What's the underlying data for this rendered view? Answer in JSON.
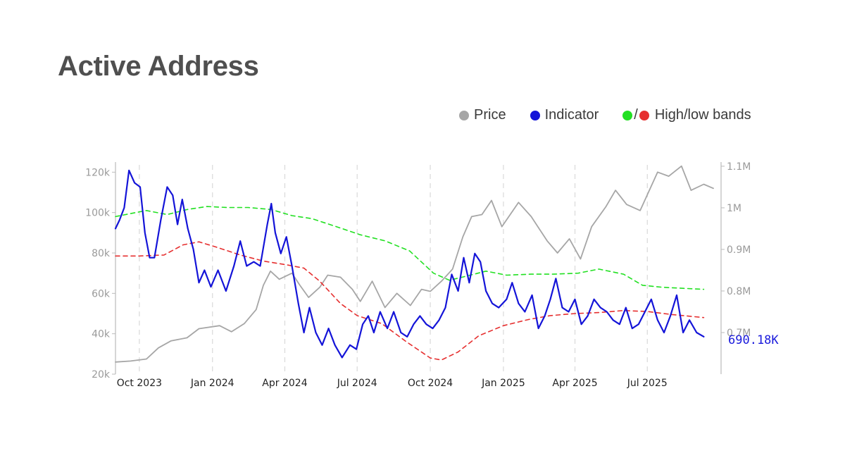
{
  "title": "Active Address",
  "legend": {
    "price": "Price",
    "indicator": "Indicator",
    "slash": "/",
    "bands": "High/low bands"
  },
  "colors": {
    "price": "#a6a6a6",
    "indicator": "#1414d8",
    "high_band": "#22e022",
    "low_band": "#e63030",
    "grid": "#d9d9d9",
    "axis": "#bbbbbb",
    "title": "#4f4f4f"
  },
  "chart_data": {
    "type": "line",
    "title": "Active Address",
    "x_ticks": [
      "Oct 2023",
      "Jan 2024",
      "Apr 2024",
      "Jul 2024",
      "Oct 2024",
      "Jan 2025",
      "Apr 2025",
      "Jul 2025"
    ],
    "x_tick_dates": [
      "2023-10-01",
      "2024-01-01",
      "2024-04-01",
      "2024-07-01",
      "2024-10-01",
      "2025-01-01",
      "2025-04-01",
      "2025-07-01"
    ],
    "x_range": [
      "2023-09-01",
      "2025-09-30"
    ],
    "y_left": {
      "range": [
        20000,
        125000
      ],
      "ticks": [
        20000,
        40000,
        60000,
        80000,
        100000,
        120000
      ],
      "tick_labels": [
        "20k",
        "40k",
        "60k",
        "80k",
        "100k",
        "120k"
      ]
    },
    "y_right": {
      "range": [
        600000,
        1110000
      ],
      "ticks": [
        700000,
        800000,
        900000,
        1000000,
        1100000
      ],
      "tick_labels": [
        "0.7M",
        "0.8M",
        "0.9M",
        "1M",
        "1.1M"
      ]
    },
    "grid": {
      "vertical_dashed": true,
      "horizontal": false
    },
    "last_value_label": "690.18K",
    "series": [
      {
        "name": "Price",
        "axis": "left",
        "style": "solid",
        "color": "#a6a6a6",
        "points": [
          [
            "2023-09-01",
            26000
          ],
          [
            "2023-09-20",
            26500
          ],
          [
            "2023-10-10",
            27500
          ],
          [
            "2023-10-25",
            33000
          ],
          [
            "2023-11-10",
            36500
          ],
          [
            "2023-11-30",
            38000
          ],
          [
            "2023-12-15",
            42500
          ],
          [
            "2024-01-10",
            44000
          ],
          [
            "2024-01-25",
            41000
          ],
          [
            "2024-02-10",
            45000
          ],
          [
            "2024-02-25",
            52000
          ],
          [
            "2024-03-05",
            64000
          ],
          [
            "2024-03-14",
            71000
          ],
          [
            "2024-03-25",
            67000
          ],
          [
            "2024-04-10",
            70000
          ],
          [
            "2024-04-20",
            64000
          ],
          [
            "2024-05-01",
            58000
          ],
          [
            "2024-05-15",
            63000
          ],
          [
            "2024-05-25",
            69000
          ],
          [
            "2024-06-10",
            68000
          ],
          [
            "2024-06-25",
            62000
          ],
          [
            "2024-07-05",
            56000
          ],
          [
            "2024-07-20",
            66000
          ],
          [
            "2024-08-05",
            53000
          ],
          [
            "2024-08-20",
            60000
          ],
          [
            "2024-09-06",
            54000
          ],
          [
            "2024-09-20",
            62000
          ],
          [
            "2024-10-01",
            61000
          ],
          [
            "2024-10-15",
            66000
          ],
          [
            "2024-10-29",
            72000
          ],
          [
            "2024-11-11",
            88000
          ],
          [
            "2024-11-22",
            98000
          ],
          [
            "2024-12-05",
            99000
          ],
          [
            "2024-12-17",
            106000
          ],
          [
            "2024-12-30",
            93000
          ],
          [
            "2025-01-20",
            105000
          ],
          [
            "2025-02-05",
            98000
          ],
          [
            "2025-02-25",
            86000
          ],
          [
            "2025-03-10",
            80000
          ],
          [
            "2025-03-25",
            87000
          ],
          [
            "2025-04-08",
            77000
          ],
          [
            "2025-04-22",
            93000
          ],
          [
            "2025-05-10",
            103000
          ],
          [
            "2025-05-22",
            111000
          ],
          [
            "2025-06-05",
            104000
          ],
          [
            "2025-06-22",
            101000
          ],
          [
            "2025-07-14",
            120000
          ],
          [
            "2025-07-28",
            118000
          ],
          [
            "2025-08-13",
            123000
          ],
          [
            "2025-08-25",
            111000
          ],
          [
            "2025-09-10",
            114000
          ],
          [
            "2025-09-22",
            112000
          ]
        ]
      },
      {
        "name": "Indicator",
        "axis": "right",
        "style": "solid",
        "color": "#1414d8",
        "points": [
          [
            "2023-09-01",
            950000
          ],
          [
            "2023-09-06",
            970000
          ],
          [
            "2023-09-12",
            1000000
          ],
          [
            "2023-09-18",
            1090000
          ],
          [
            "2023-09-25",
            1060000
          ],
          [
            "2023-10-02",
            1050000
          ],
          [
            "2023-10-08",
            940000
          ],
          [
            "2023-10-14",
            880000
          ],
          [
            "2023-10-20",
            880000
          ],
          [
            "2023-10-28",
            970000
          ],
          [
            "2023-11-05",
            1050000
          ],
          [
            "2023-11-12",
            1030000
          ],
          [
            "2023-11-18",
            960000
          ],
          [
            "2023-11-24",
            1020000
          ],
          [
            "2023-12-01",
            950000
          ],
          [
            "2023-12-08",
            900000
          ],
          [
            "2023-12-15",
            820000
          ],
          [
            "2023-12-22",
            850000
          ],
          [
            "2023-12-30",
            810000
          ],
          [
            "2024-01-08",
            850000
          ],
          [
            "2024-01-18",
            800000
          ],
          [
            "2024-01-28",
            860000
          ],
          [
            "2024-02-05",
            920000
          ],
          [
            "2024-02-13",
            860000
          ],
          [
            "2024-02-22",
            870000
          ],
          [
            "2024-03-01",
            860000
          ],
          [
            "2024-03-10",
            960000
          ],
          [
            "2024-03-15",
            1010000
          ],
          [
            "2024-03-20",
            940000
          ],
          [
            "2024-03-27",
            890000
          ],
          [
            "2024-04-03",
            930000
          ],
          [
            "2024-04-10",
            860000
          ],
          [
            "2024-04-18",
            770000
          ],
          [
            "2024-04-25",
            700000
          ],
          [
            "2024-05-02",
            760000
          ],
          [
            "2024-05-10",
            700000
          ],
          [
            "2024-05-18",
            670000
          ],
          [
            "2024-05-26",
            710000
          ],
          [
            "2024-06-03",
            670000
          ],
          [
            "2024-06-12",
            640000
          ],
          [
            "2024-06-22",
            670000
          ],
          [
            "2024-06-30",
            660000
          ],
          [
            "2024-07-08",
            720000
          ],
          [
            "2024-07-15",
            740000
          ],
          [
            "2024-07-22",
            700000
          ],
          [
            "2024-07-30",
            750000
          ],
          [
            "2024-08-08",
            710000
          ],
          [
            "2024-08-16",
            750000
          ],
          [
            "2024-08-25",
            700000
          ],
          [
            "2024-09-02",
            690000
          ],
          [
            "2024-09-10",
            720000
          ],
          [
            "2024-09-18",
            740000
          ],
          [
            "2024-09-26",
            720000
          ],
          [
            "2024-10-04",
            710000
          ],
          [
            "2024-10-12",
            730000
          ],
          [
            "2024-10-20",
            760000
          ],
          [
            "2024-10-28",
            840000
          ],
          [
            "2024-11-05",
            800000
          ],
          [
            "2024-11-12",
            880000
          ],
          [
            "2024-11-19",
            820000
          ],
          [
            "2024-11-26",
            890000
          ],
          [
            "2024-12-03",
            870000
          ],
          [
            "2024-12-10",
            800000
          ],
          [
            "2024-12-18",
            770000
          ],
          [
            "2024-12-26",
            760000
          ],
          [
            "2025-01-05",
            780000
          ],
          [
            "2025-01-12",
            820000
          ],
          [
            "2025-01-20",
            770000
          ],
          [
            "2025-01-28",
            750000
          ],
          [
            "2025-02-06",
            790000
          ],
          [
            "2025-02-14",
            710000
          ],
          [
            "2025-02-22",
            740000
          ],
          [
            "2025-03-01",
            780000
          ],
          [
            "2025-03-08",
            830000
          ],
          [
            "2025-03-16",
            760000
          ],
          [
            "2025-03-24",
            750000
          ],
          [
            "2025-04-01",
            780000
          ],
          [
            "2025-04-09",
            720000
          ],
          [
            "2025-04-17",
            740000
          ],
          [
            "2025-04-25",
            780000
          ],
          [
            "2025-05-03",
            760000
          ],
          [
            "2025-05-11",
            750000
          ],
          [
            "2025-05-19",
            730000
          ],
          [
            "2025-05-27",
            720000
          ],
          [
            "2025-06-04",
            760000
          ],
          [
            "2025-06-12",
            710000
          ],
          [
            "2025-06-20",
            720000
          ],
          [
            "2025-06-28",
            750000
          ],
          [
            "2025-07-06",
            780000
          ],
          [
            "2025-07-14",
            730000
          ],
          [
            "2025-07-22",
            700000
          ],
          [
            "2025-07-30",
            740000
          ],
          [
            "2025-08-07",
            790000
          ],
          [
            "2025-08-15",
            700000
          ],
          [
            "2025-08-23",
            730000
          ],
          [
            "2025-09-01",
            700000
          ],
          [
            "2025-09-10",
            690180
          ]
        ]
      },
      {
        "name": "High band",
        "axis": "left",
        "style": "dashed",
        "color": "#22e022",
        "points": [
          [
            "2023-09-01",
            98000
          ],
          [
            "2023-09-20",
            99500
          ],
          [
            "2023-10-10",
            101000
          ],
          [
            "2023-11-05",
            99000
          ],
          [
            "2023-11-30",
            101500
          ],
          [
            "2023-12-25",
            103000
          ],
          [
            "2024-01-20",
            102500
          ],
          [
            "2024-02-15",
            102500
          ],
          [
            "2024-03-15",
            101500
          ],
          [
            "2024-04-10",
            98500
          ],
          [
            "2024-05-05",
            97000
          ],
          [
            "2024-06-05",
            93000
          ],
          [
            "2024-07-05",
            89000
          ],
          [
            "2024-08-05",
            86000
          ],
          [
            "2024-09-05",
            81000
          ],
          [
            "2024-10-05",
            70000
          ],
          [
            "2024-10-25",
            66500
          ],
          [
            "2024-11-15",
            68500
          ],
          [
            "2024-12-10",
            71000
          ],
          [
            "2025-01-05",
            69000
          ],
          [
            "2025-02-05",
            69500
          ],
          [
            "2025-03-05",
            69500
          ],
          [
            "2025-04-05",
            70000
          ],
          [
            "2025-05-01",
            72000
          ],
          [
            "2025-06-01",
            69500
          ],
          [
            "2025-06-25",
            64000
          ],
          [
            "2025-07-20",
            63000
          ],
          [
            "2025-08-15",
            62500
          ],
          [
            "2025-09-10",
            62000
          ]
        ]
      },
      {
        "name": "Low band",
        "axis": "left",
        "style": "dashed",
        "color": "#e63030",
        "points": [
          [
            "2023-09-01",
            78500
          ],
          [
            "2023-10-01",
            78500
          ],
          [
            "2023-11-01",
            79000
          ],
          [
            "2023-11-25",
            84000
          ],
          [
            "2023-12-15",
            85500
          ],
          [
            "2024-01-05",
            83000
          ],
          [
            "2024-02-05",
            79000
          ],
          [
            "2024-03-05",
            76000
          ],
          [
            "2024-04-05",
            74000
          ],
          [
            "2024-04-25",
            72500
          ],
          [
            "2024-05-15",
            66000
          ],
          [
            "2024-06-10",
            55000
          ],
          [
            "2024-07-01",
            49000
          ],
          [
            "2024-08-01",
            45000
          ],
          [
            "2024-09-01",
            36000
          ],
          [
            "2024-10-01",
            28000
          ],
          [
            "2024-10-15",
            27000
          ],
          [
            "2024-11-05",
            31000
          ],
          [
            "2024-12-01",
            39000
          ],
          [
            "2025-01-01",
            44000
          ],
          [
            "2025-02-01",
            47000
          ],
          [
            "2025-03-01",
            49000
          ],
          [
            "2025-04-01",
            50000
          ],
          [
            "2025-05-01",
            50500
          ],
          [
            "2025-06-01",
            51500
          ],
          [
            "2025-07-01",
            51000
          ],
          [
            "2025-08-01",
            49500
          ],
          [
            "2025-09-10",
            48000
          ]
        ]
      }
    ]
  }
}
